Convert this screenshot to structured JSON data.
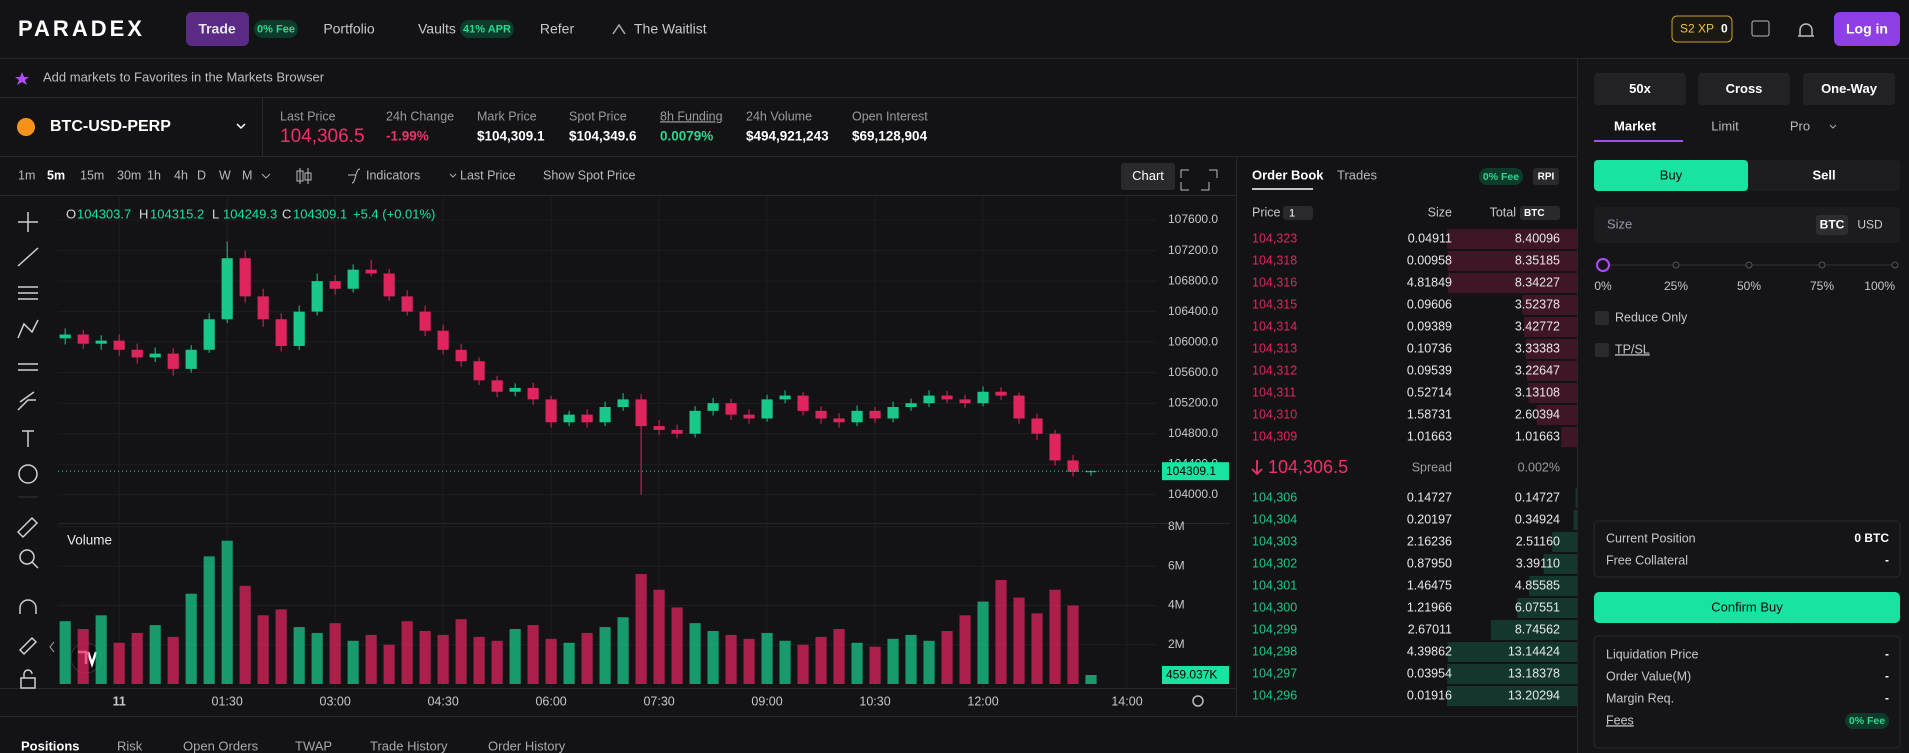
{
  "nav": {
    "logo": "PARADEX",
    "trade": "Trade",
    "trade_badge": "0% Fee",
    "portfolio": "Portfolio",
    "vaults": "Vaults",
    "vaults_badge": "41% APR",
    "refer": "Refer",
    "waitlist": "The Waitlist",
    "xp_label": "S2 XP",
    "xp_value": "0",
    "login": "Log in"
  },
  "favorites_hint": "Add markets to Favorites in the Markets Browser",
  "market": {
    "symbol": "BTC-USD-PERP",
    "stats": [
      {
        "label": "Last Price",
        "value": "104,306.5"
      },
      {
        "label": "24h Change",
        "value": "-1.99%"
      },
      {
        "label": "Mark Price",
        "value": "$104,309.1"
      },
      {
        "label": "Spot Price",
        "value": "$104,349.6"
      },
      {
        "label": "8h Funding",
        "value": "0.0079%"
      },
      {
        "label": "24h Volume",
        "value": "$494,921,243"
      },
      {
        "label": "Open Interest",
        "value": "$69,128,904"
      }
    ]
  },
  "toolbar": {
    "intervals": [
      "1m",
      "5m",
      "15m",
      "30m",
      "1h",
      "4h",
      "D",
      "W",
      "M"
    ],
    "indicators": "Indicators",
    "price_source": "Last Price",
    "spot_toggle": "Show Spot Price",
    "chart_button": "Chart"
  },
  "chart_data": {
    "type": "candlestick",
    "up_color": "#19c98a",
    "down_color": "#e0245e",
    "ohlc_legend": [
      {
        "key": "O",
        "value": "104303.7"
      },
      {
        "key": "H",
        "value": "104315.2"
      },
      {
        "key": "L",
        "value": "104249.3"
      },
      {
        "key": "C",
        "value": "104309.1"
      }
    ],
    "change": "+5.4 (+0.01%)",
    "volume_title": "Volume",
    "last_price_label": "104309.1",
    "volume_label": "459.037K",
    "x": [
      -45,
      -30,
      -15,
      0,
      15,
      30,
      45,
      60,
      75,
      90,
      105,
      120,
      135,
      150,
      165,
      180,
      195,
      210,
      225,
      240,
      255,
      270,
      285,
      300,
      315,
      330,
      345,
      360,
      375,
      390,
      405,
      420,
      435,
      450,
      465,
      480,
      495,
      510,
      525,
      540,
      555,
      570,
      585,
      600,
      615,
      630,
      645,
      660,
      675,
      690,
      705,
      720,
      735,
      750,
      765,
      780,
      795,
      810
    ],
    "open": [
      106050,
      106100,
      105980,
      106020,
      105900,
      105800,
      105850,
      105650,
      105900,
      106300,
      107100,
      106600,
      106300,
      105950,
      106400,
      106800,
      106700,
      106950,
      106900,
      106600,
      106400,
      106150,
      105900,
      105750,
      105500,
      105350,
      105400,
      105250,
      104950,
      105050,
      104950,
      105150,
      105250,
      104900,
      104850,
      104800,
      105100,
      105200,
      105050,
      105000,
      105250,
      105300,
      105100,
      105000,
      104950,
      105100,
      105000,
      105150,
      105200,
      105300,
      105250,
      105200,
      105350,
      105300,
      105000,
      104800,
      104450,
      104303.7
    ],
    "high": [
      106180,
      106160,
      106090,
      106100,
      105980,
      105930,
      105920,
      105960,
      106380,
      107320,
      107200,
      106700,
      106380,
      106480,
      106900,
      106880,
      107020,
      107080,
      106960,
      106680,
      106480,
      106230,
      105980,
      105800,
      105560,
      105460,
      105470,
      105300,
      105100,
      105120,
      105220,
      105330,
      105320,
      104980,
      104920,
      105160,
      105270,
      105260,
      105120,
      105310,
      105370,
      105350,
      105160,
      105070,
      105170,
      105150,
      105220,
      105260,
      105370,
      105360,
      105310,
      105420,
      105410,
      105340,
      105060,
      104850,
      104520,
      104315.2
    ],
    "low": [
      105970,
      105910,
      105900,
      105820,
      105720,
      105740,
      105560,
      105600,
      105860,
      106250,
      106520,
      106200,
      105880,
      105900,
      106350,
      106620,
      106650,
      106860,
      106540,
      106350,
      106080,
      105840,
      105680,
      105440,
      105280,
      105290,
      105180,
      104880,
      104900,
      104880,
      104900,
      105100,
      104000,
      104780,
      104740,
      104750,
      105040,
      104980,
      104930,
      104960,
      105200,
      105040,
      104930,
      104880,
      104900,
      104940,
      104950,
      105100,
      105150,
      105200,
      105140,
      105160,
      105240,
      104930,
      104720,
      104380,
      104240,
      104249.3
    ],
    "close": [
      106100,
      105980,
      106020,
      105900,
      105800,
      105850,
      105650,
      105900,
      106300,
      107100,
      106600,
      106300,
      105950,
      106400,
      106800,
      106700,
      106950,
      106900,
      106600,
      106400,
      106150,
      105900,
      105750,
      105500,
      105350,
      105400,
      105250,
      104950,
      105050,
      104950,
      105150,
      105250,
      104900,
      104850,
      104800,
      105100,
      105200,
      105050,
      105000,
      105250,
      105300,
      105100,
      105000,
      104950,
      105100,
      105000,
      105150,
      105200,
      105300,
      105250,
      105200,
      105350,
      105300,
      105000,
      104800,
      104450,
      104300,
      104309.1
    ],
    "volume": [
      3200000,
      2800000,
      3500000,
      2100000,
      2600000,
      3000000,
      2400000,
      4600000,
      6500000,
      7300000,
      5000000,
      3500000,
      3800000,
      2900000,
      2600000,
      3100000,
      2200000,
      2500000,
      2000000,
      3200000,
      2700000,
      2500000,
      3300000,
      2400000,
      2200000,
      2800000,
      3000000,
      2300000,
      2100000,
      2600000,
      2900000,
      3400000,
      5600000,
      4800000,
      3900000,
      3100000,
      2700000,
      2500000,
      2300000,
      2600000,
      2200000,
      2000000,
      2400000,
      2800000,
      2100000,
      1900000,
      2300000,
      2500000,
      2200000,
      2700000,
      3500000,
      4200000,
      5300000,
      4400000,
      3600000,
      4800000,
      4000000,
      459037
    ],
    "xlim": [
      -51,
      865
    ],
    "xticks": [
      {
        "value": 0,
        "label": "11"
      },
      {
        "value": 90,
        "label": "01:30"
      },
      {
        "value": 180,
        "label": "03:00"
      },
      {
        "value": 270,
        "label": "04:30"
      },
      {
        "value": 360,
        "label": "06:00"
      },
      {
        "value": 450,
        "label": "07:30"
      },
      {
        "value": 540,
        "label": "09:00"
      },
      {
        "value": 630,
        "label": "10:30"
      },
      {
        "value": 720,
        "label": "12:00"
      },
      {
        "value": 840,
        "label": "14:00"
      }
    ],
    "ylim": [
      103630,
      107850
    ],
    "yticks": [
      {
        "value": 104000,
        "label": "104000.0"
      },
      {
        "value": 104400,
        "label": "104400.0"
      },
      {
        "value": 104800,
        "label": "104800.0"
      },
      {
        "value": 105200,
        "label": "105200.0"
      },
      {
        "value": 105600,
        "label": "105600.0"
      },
      {
        "value": 106000,
        "label": "106000.0"
      },
      {
        "value": 106400,
        "label": "106400.0"
      },
      {
        "value": 106800,
        "label": "106800.0"
      },
      {
        "value": 107200,
        "label": "107200.0"
      },
      {
        "value": 107600,
        "label": "107600.0"
      }
    ],
    "volume_ylim": [
      0,
      8200000
    ],
    "volume_yticks": [
      {
        "value": 2000000,
        "label": "2M"
      },
      {
        "value": 4000000,
        "label": "4M"
      },
      {
        "value": 6000000,
        "label": "6M"
      },
      {
        "value": 8000000,
        "label": "8M"
      }
    ],
    "grid": true
  },
  "order_book": {
    "tabs": [
      "Order Book",
      "Trades"
    ],
    "fee_badge": "0% Fee",
    "rpi": "RPI",
    "headers": {
      "price": "Price",
      "tick": "1",
      "size": "Size",
      "total": "Total",
      "unit": "BTC"
    },
    "asks": [
      {
        "price": "104,323",
        "size": "0.04911",
        "total": "8.40096"
      },
      {
        "price": "104,318",
        "size": "0.00958",
        "total": "8.35185"
      },
      {
        "price": "104,316",
        "size": "4.81849",
        "total": "8.34227"
      },
      {
        "price": "104,315",
        "size": "0.09606",
        "total": "3.52378"
      },
      {
        "price": "104,314",
        "size": "0.09389",
        "total": "3.42772"
      },
      {
        "price": "104,313",
        "size": "0.10736",
        "total": "3.33383"
      },
      {
        "price": "104,312",
        "size": "0.09539",
        "total": "3.22647"
      },
      {
        "price": "104,311",
        "size": "0.52714",
        "total": "3.13108"
      },
      {
        "price": "104,310",
        "size": "1.58731",
        "total": "2.60394"
      },
      {
        "price": "104,309",
        "size": "1.01663",
        "total": "1.01663"
      }
    ],
    "mid_price": "104,306.5",
    "spread_label": "Spread",
    "spread": "0.002%",
    "bids": [
      {
        "price": "104,306",
        "size": "0.14727",
        "total": "0.14727"
      },
      {
        "price": "104,304",
        "size": "0.20197",
        "total": "0.34924"
      },
      {
        "price": "104,303",
        "size": "2.16236",
        "total": "2.51160"
      },
      {
        "price": "104,302",
        "size": "0.87950",
        "total": "3.39110"
      },
      {
        "price": "104,301",
        "size": "1.46475",
        "total": "4.85585"
      },
      {
        "price": "104,300",
        "size": "1.21966",
        "total": "6.07551"
      },
      {
        "price": "104,299",
        "size": "2.67011",
        "total": "8.74562"
      },
      {
        "price": "104,298",
        "size": "4.39862",
        "total": "13.14424"
      },
      {
        "price": "104,297",
        "size": "0.03954",
        "total": "13.18378"
      },
      {
        "price": "104,296",
        "size": "0.01916",
        "total": "13.20294"
      }
    ]
  },
  "order_form": {
    "leverage": "50x",
    "margin_mode": "Cross",
    "position_mode": "One-Way",
    "order_types": [
      "Market",
      "Limit",
      "Pro"
    ],
    "buy": "Buy",
    "sell": "Sell",
    "size_label": "Size",
    "size_units": [
      "BTC",
      "USD"
    ],
    "slider_marks": [
      "0%",
      "25%",
      "50%",
      "75%",
      "100%"
    ],
    "reduce_only": "Reduce Only",
    "tp_sl": "TP/SL",
    "position": [
      {
        "label": "Current Position",
        "value": "0 BTC"
      },
      {
        "label": "Free Collateral",
        "value": "-"
      }
    ],
    "confirm": "Confirm Buy",
    "summary": [
      {
        "label": "Liquidation Price",
        "value": "-"
      },
      {
        "label": "Order Value(M)",
        "value": "-"
      },
      {
        "label": "Margin Req.",
        "value": "-"
      },
      {
        "label": "Fees",
        "value": "0% Fee"
      }
    ]
  },
  "bottom_tabs": [
    "Positions",
    "Risk",
    "Open Orders",
    "TWAP",
    "Trade History",
    "Order History"
  ]
}
